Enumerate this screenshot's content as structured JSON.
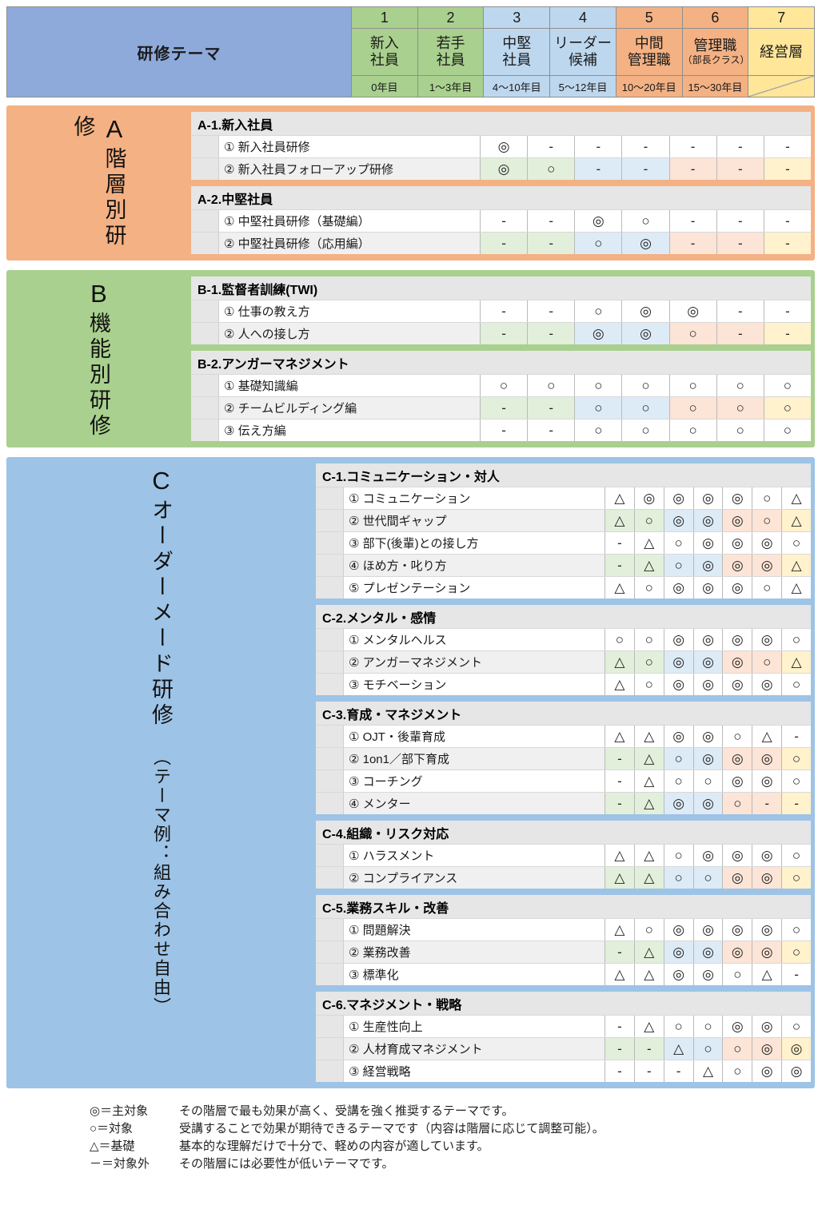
{
  "header": {
    "title": "研修テーマ",
    "columns": [
      {
        "num": "1",
        "name_lines": [
          "新入",
          "社員"
        ],
        "years": "0年目",
        "color": "#A9D08E",
        "pale": "#E2EFDA"
      },
      {
        "num": "2",
        "name_lines": [
          "若手",
          "社員"
        ],
        "years": "1～3年目",
        "color": "#A9D08E",
        "pale": "#E2EFDA"
      },
      {
        "num": "3",
        "name_lines": [
          "中堅",
          "社員"
        ],
        "years": "4～10年目",
        "color": "#BDD7EE",
        "pale": "#DDEBF7"
      },
      {
        "num": "4",
        "name_lines": [
          "リーダー",
          "候補"
        ],
        "years": "5～12年目",
        "color": "#BDD7EE",
        "pale": "#DDEBF7"
      },
      {
        "num": "5",
        "name_lines": [
          "中間",
          "管理職"
        ],
        "years": "10～20年目",
        "color": "#F4B183",
        "pale": "#FCE4D6"
      },
      {
        "num": "6",
        "name_lines": [
          "管理職",
          "（部長クラス）"
        ],
        "years": "15～30年目",
        "color": "#F4B183",
        "pale": "#FCE4D6"
      },
      {
        "num": "7",
        "name_lines": [
          "経営層"
        ],
        "years": "",
        "color": "#FFE699",
        "pale": "#FFF2CC",
        "diagonal": true
      }
    ]
  },
  "colors": {
    "header_blue": "#8EAADB",
    "band_a": "#F4B183",
    "band_b": "#A9D08E",
    "band_c": "#9DC3E6"
  },
  "sections": [
    {
      "letter": "A",
      "title": "階層別研修",
      "subtitle": "",
      "band_color": "#F4B183",
      "subsections": [
        {
          "title": "A-1.新入社員",
          "rows": [
            {
              "label": "① 新入社員研修",
              "marks": [
                "◎",
                "-",
                "-",
                "-",
                "-",
                "-",
                "-"
              ]
            },
            {
              "label": "② 新入社員フォローアップ研修",
              "marks": [
                "◎",
                "○",
                "-",
                "-",
                "-",
                "-",
                "-"
              ]
            }
          ]
        },
        {
          "title": "A-2.中堅社員",
          "rows": [
            {
              "label": "① 中堅社員研修（基礎編）",
              "marks": [
                "-",
                "-",
                "◎",
                "○",
                "-",
                "-",
                "-"
              ]
            },
            {
              "label": "② 中堅社員研修（応用編）",
              "marks": [
                "-",
                "-",
                "○",
                "◎",
                "-",
                "-",
                "-"
              ]
            }
          ]
        }
      ]
    },
    {
      "letter": "B",
      "title": "機能別研修",
      "subtitle": "",
      "band_color": "#A9D08E",
      "subsections": [
        {
          "title": "B-1.監督者訓練(TWI)",
          "rows": [
            {
              "label": "① 仕事の教え方",
              "marks": [
                "-",
                "-",
                "○",
                "◎",
                "◎",
                "-",
                "-"
              ]
            },
            {
              "label": "② 人への接し方",
              "marks": [
                "-",
                "-",
                "◎",
                "◎",
                "○",
                "-",
                "-"
              ]
            }
          ]
        },
        {
          "title": "B-2.アンガーマネジメント",
          "rows": [
            {
              "label": "① 基礎知識編",
              "marks": [
                "○",
                "○",
                "○",
                "○",
                "○",
                "○",
                "○"
              ]
            },
            {
              "label": "② チームビルディング編",
              "marks": [
                "-",
                "-",
                "○",
                "○",
                "○",
                "○",
                "○"
              ]
            },
            {
              "label": "③ 伝え方編",
              "marks": [
                "-",
                "-",
                "○",
                "○",
                "○",
                "○",
                "○"
              ]
            }
          ]
        }
      ]
    },
    {
      "letter": "C",
      "title": "オーダーメード研修",
      "subtitle": "（テーマ例：組み合わせ自由）",
      "band_color": "#9DC3E6",
      "subsections": [
        {
          "title": "C-1.コミュニケーション・対人",
          "rows": [
            {
              "label": "① コミュニケーション",
              "marks": [
                "△",
                "◎",
                "◎",
                "◎",
                "◎",
                "○",
                "△"
              ]
            },
            {
              "label": "② 世代間ギャップ",
              "marks": [
                "△",
                "○",
                "◎",
                "◎",
                "◎",
                "○",
                "△"
              ]
            },
            {
              "label": "③ 部下(後輩)との接し方",
              "marks": [
                "-",
                "△",
                "○",
                "◎",
                "◎",
                "◎",
                "○"
              ]
            },
            {
              "label": "④ ほめ方・叱り方",
              "marks": [
                "-",
                "△",
                "○",
                "◎",
                "◎",
                "◎",
                "△"
              ]
            },
            {
              "label": "⑤ プレゼンテーション",
              "marks": [
                "△",
                "○",
                "◎",
                "◎",
                "◎",
                "○",
                "△"
              ]
            }
          ]
        },
        {
          "title": "C-2.メンタル・感情",
          "rows": [
            {
              "label": "① メンタルヘルス",
              "marks": [
                "○",
                "○",
                "◎",
                "◎",
                "◎",
                "◎",
                "○"
              ]
            },
            {
              "label": "② アンガーマネジメント",
              "marks": [
                "△",
                "○",
                "◎",
                "◎",
                "◎",
                "○",
                "△"
              ]
            },
            {
              "label": "③ モチベーション",
              "marks": [
                "△",
                "○",
                "◎",
                "◎",
                "◎",
                "◎",
                "○"
              ]
            }
          ]
        },
        {
          "title": "C-3.育成・マネジメント",
          "rows": [
            {
              "label": "① OJT・後輩育成",
              "marks": [
                "△",
                "△",
                "◎",
                "◎",
                "○",
                "△",
                "-"
              ]
            },
            {
              "label": "② 1on1／部下育成",
              "marks": [
                "-",
                "△",
                "○",
                "◎",
                "◎",
                "◎",
                "○"
              ]
            },
            {
              "label": "③ コーチング",
              "marks": [
                "-",
                "△",
                "○",
                "○",
                "◎",
                "◎",
                "○"
              ]
            },
            {
              "label": "④ メンター",
              "marks": [
                "-",
                "△",
                "◎",
                "◎",
                "○",
                "-",
                "-"
              ]
            }
          ]
        },
        {
          "title": "C-4.組織・リスク対応",
          "rows": [
            {
              "label": "① ハラスメント",
              "marks": [
                "△",
                "△",
                "○",
                "◎",
                "◎",
                "◎",
                "○"
              ]
            },
            {
              "label": "② コンプライアンス",
              "marks": [
                "△",
                "△",
                "○",
                "○",
                "◎",
                "◎",
                "○"
              ]
            }
          ]
        },
        {
          "title": "C-5.業務スキル・改善",
          "rows": [
            {
              "label": "① 問題解決",
              "marks": [
                "△",
                "○",
                "◎",
                "◎",
                "◎",
                "◎",
                "○"
              ]
            },
            {
              "label": "② 業務改善",
              "marks": [
                "-",
                "△",
                "◎",
                "◎",
                "◎",
                "◎",
                "○"
              ]
            },
            {
              "label": "③ 標準化",
              "marks": [
                "△",
                "△",
                "◎",
                "◎",
                "○",
                "△",
                "-"
              ]
            }
          ]
        },
        {
          "title": "C-6.マネジメント・戦略",
          "rows": [
            {
              "label": "① 生産性向上",
              "marks": [
                "-",
                "△",
                "○",
                "○",
                "◎",
                "◎",
                "○"
              ]
            },
            {
              "label": "② 人材育成マネジメント",
              "marks": [
                "-",
                "-",
                "△",
                "○",
                "○",
                "◎",
                "◎"
              ]
            },
            {
              "label": "③ 経営戦略",
              "marks": [
                "-",
                "-",
                "-",
                "△",
                "○",
                "◎",
                "◎"
              ]
            }
          ]
        }
      ]
    }
  ],
  "legend": {
    "items": [
      {
        "symbol": "◎＝主対象",
        "desc": "その階層で最も効果が高く、受講を強く推奨するテーマです。"
      },
      {
        "symbol": "○＝対象",
        "desc": "受講することで効果が期待できるテーマです（内容は階層に応じて調整可能）。"
      },
      {
        "symbol": "△＝基礎",
        "desc": "基本的な理解だけで十分で、軽めの内容が適しています。"
      },
      {
        "symbol": "－＝対象外",
        "desc": "その階層には必要性が低いテーマです。"
      }
    ]
  }
}
